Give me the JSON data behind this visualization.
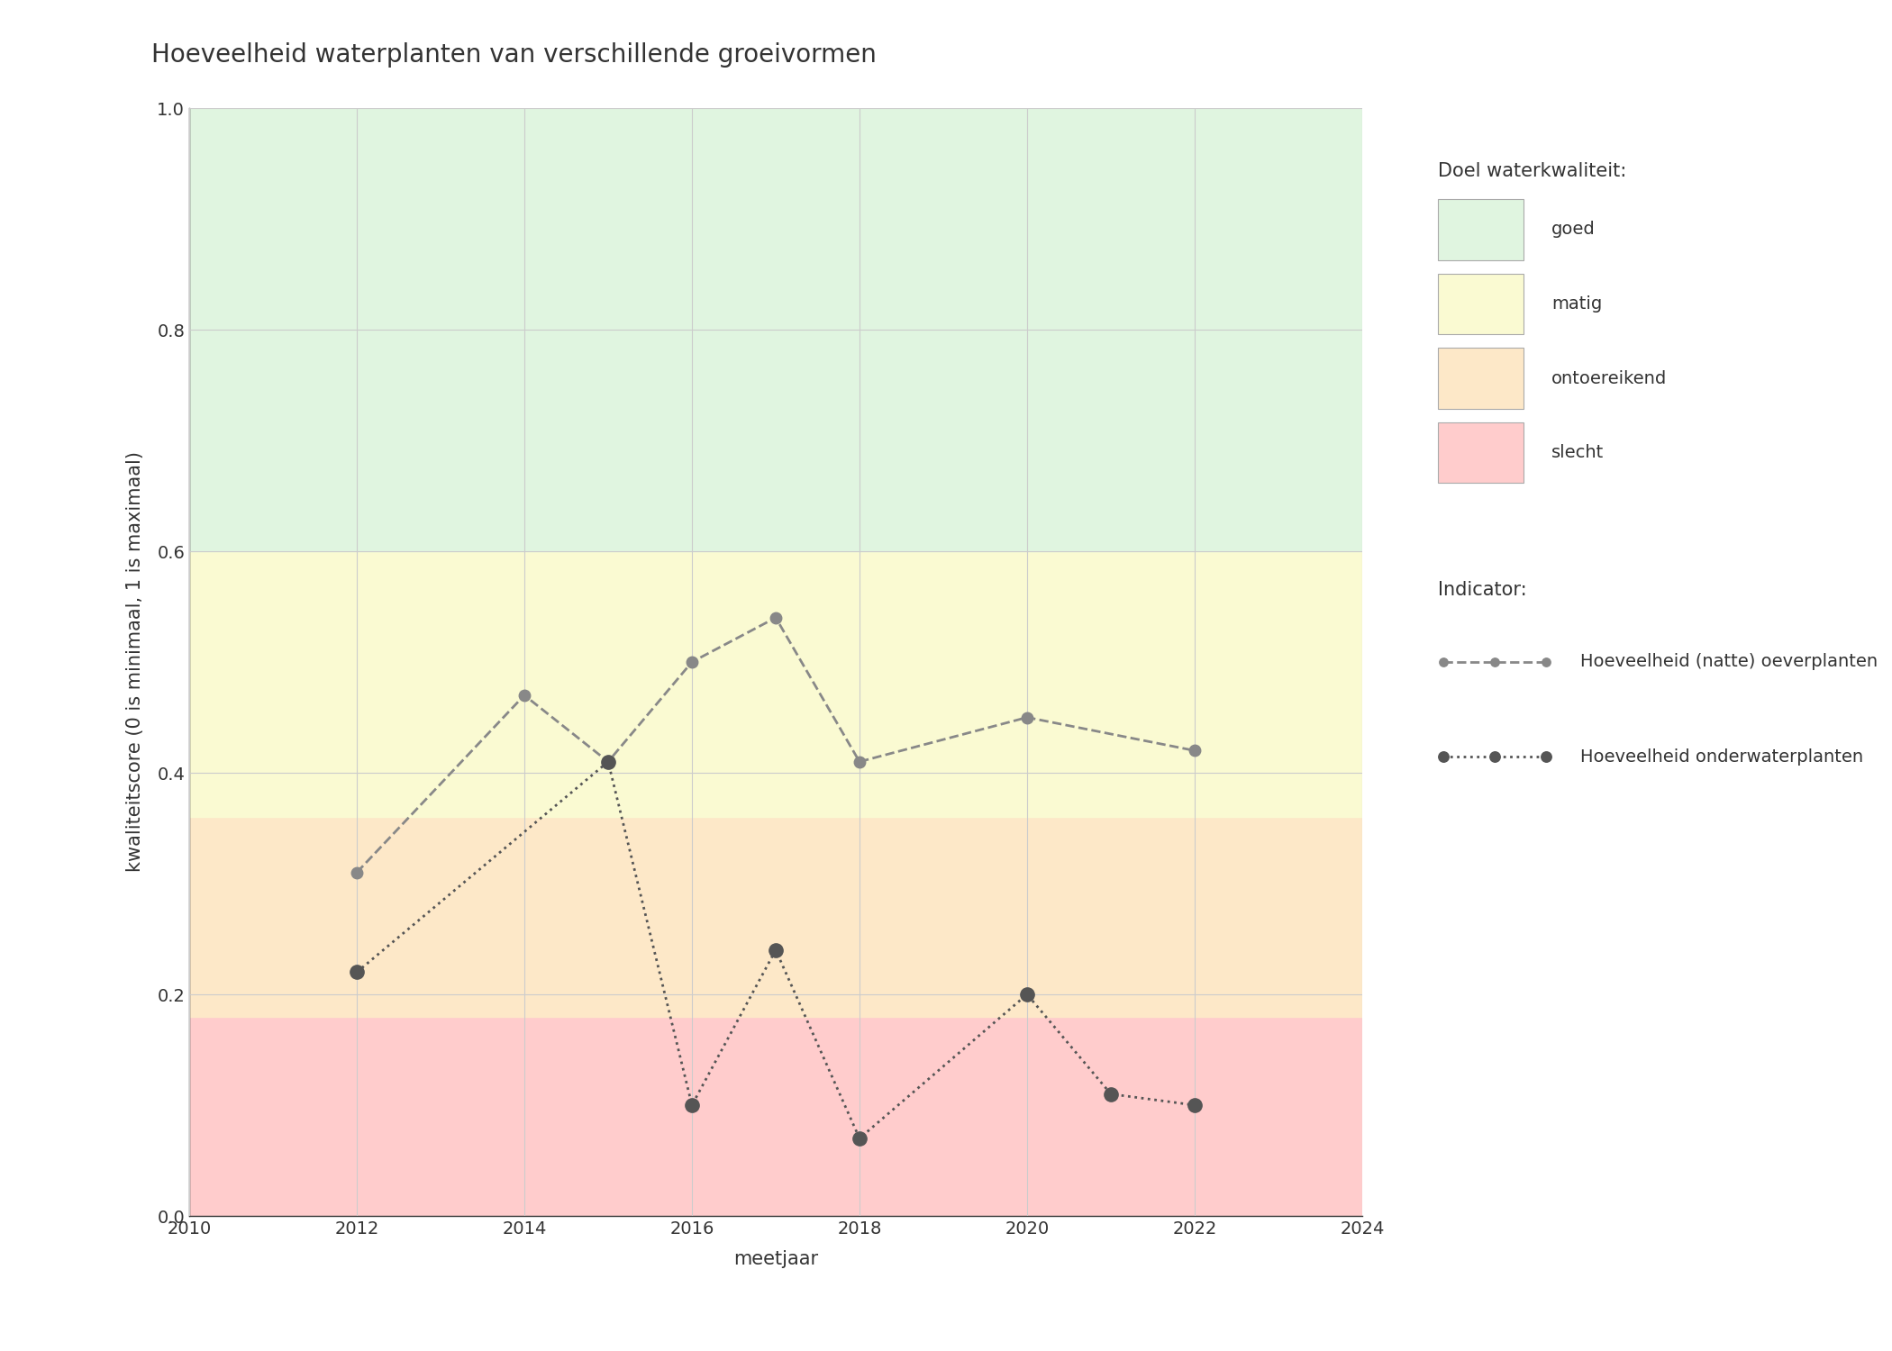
{
  "title": "Hoeveelheid waterplanten van verschillende groeivormen",
  "xlabel": "meetjaar",
  "ylabel": "kwaliteitscore (0 is minimaal, 1 is maximaal)",
  "xlim": [
    2010,
    2024
  ],
  "ylim": [
    0.0,
    1.0
  ],
  "xticks": [
    2010,
    2012,
    2014,
    2016,
    2018,
    2020,
    2022,
    2024
  ],
  "yticks": [
    0.0,
    0.2,
    0.4,
    0.6,
    0.8,
    1.0
  ],
  "background_color": "#ffffff",
  "bands": [
    {
      "ymin": 0.0,
      "ymax": 0.18,
      "color": "#ffcccc",
      "label": "slecht"
    },
    {
      "ymin": 0.18,
      "ymax": 0.36,
      "color": "#fde8c8",
      "label": "ontoereikend"
    },
    {
      "ymin": 0.36,
      "ymax": 0.6,
      "color": "#fafad2",
      "label": "matig"
    },
    {
      "ymin": 0.6,
      "ymax": 1.0,
      "color": "#e0f5e0",
      "label": "goed"
    }
  ],
  "series": [
    {
      "name": "Hoeveelheid (natte) oeverplanten",
      "x": [
        2012,
        2014,
        2015,
        2016,
        2017,
        2018,
        2020,
        2022
      ],
      "y": [
        0.31,
        0.47,
        0.41,
        0.5,
        0.54,
        0.41,
        0.45,
        0.42
      ],
      "color": "#888888",
      "linestyle": "--",
      "linewidth": 2.0,
      "markersize": 9,
      "zorder": 3
    },
    {
      "name": "Hoeveelheid onderwaterplanten",
      "x": [
        2012,
        2015,
        2016,
        2017,
        2018,
        2020,
        2021,
        2022
      ],
      "y": [
        0.22,
        0.41,
        0.1,
        0.24,
        0.07,
        0.2,
        0.11,
        0.1
      ],
      "color": "#555555",
      "linestyle": ":",
      "linewidth": 2.0,
      "markersize": 11,
      "zorder": 4
    }
  ],
  "legend_title_quality": "Doel waterkwaliteit:",
  "legend_title_indicator": "Indicator:",
  "grid_color": "#cccccc",
  "grid_linewidth": 0.8,
  "title_fontsize": 20,
  "axis_label_fontsize": 15,
  "tick_fontsize": 14,
  "legend_fontsize": 14
}
